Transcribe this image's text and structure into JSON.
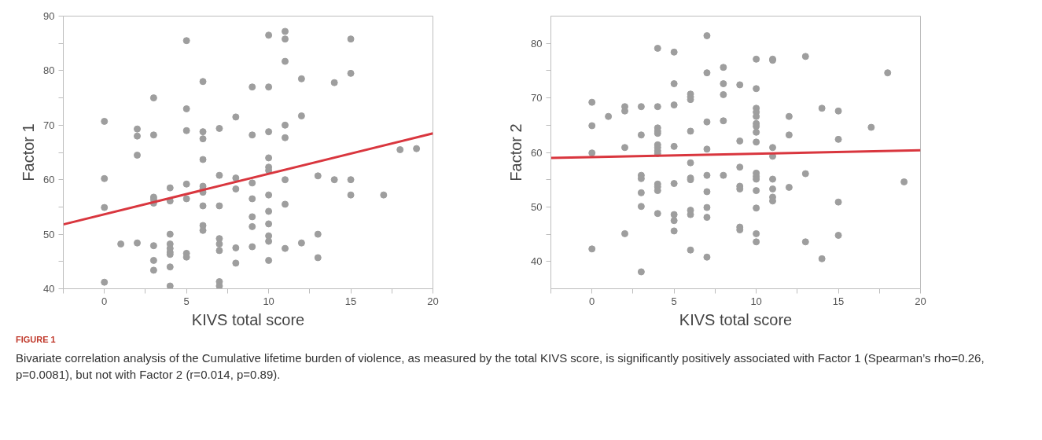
{
  "chart_data": [
    {
      "type": "scatter",
      "xlabel": "KIVS total score",
      "ylabel": "Factor 1",
      "xlim": [
        -2.5,
        20
      ],
      "ylim": [
        40,
        90
      ],
      "xticks": [
        {
          "value": -2.5,
          "label": null
        },
        0,
        {
          "value": 2.5,
          "label": null
        },
        5,
        {
          "value": 7.5,
          "label": null
        },
        10,
        {
          "value": 12.5,
          "label": null
        },
        15,
        {
          "value": 17.5,
          "label": null
        },
        20
      ],
      "yticks": [
        40,
        {
          "value": 45,
          "label": null
        },
        50,
        {
          "value": 55,
          "label": null
        },
        60,
        {
          "value": 65,
          "label": null
        },
        70,
        {
          "value": 75,
          "label": null
        },
        80,
        {
          "value": 85,
          "label": null
        },
        90
      ],
      "grid": false,
      "marker": "circle",
      "series": [
        {
          "color": "#9e9e9e",
          "x": [
            0,
            0,
            0,
            0,
            1,
            2,
            2,
            2,
            2,
            3,
            3,
            3,
            3,
            3,
            3,
            3,
            3,
            4,
            4,
            4,
            4,
            4,
            4,
            4,
            4,
            4,
            5,
            5,
            5,
            5,
            5,
            5,
            5,
            6,
            6,
            6,
            6,
            6,
            6,
            6,
            6,
            6,
            6,
            7,
            7,
            7,
            7,
            7,
            7,
            7,
            7,
            8,
            8,
            8,
            8,
            8,
            9,
            9,
            9,
            9,
            9,
            9,
            9,
            10,
            10,
            10,
            10,
            10,
            10,
            10,
            10,
            10,
            10,
            10,
            10,
            11,
            11,
            11,
            11,
            11,
            11,
            11,
            11,
            12,
            12,
            12,
            13,
            13,
            13,
            14,
            14,
            15,
            15,
            15,
            15,
            17,
            18,
            19
          ],
          "values": [
            70.7,
            60.2,
            54.9,
            41.2,
            48.2,
            69.3,
            68.0,
            64.5,
            48.4,
            75.0,
            68.2,
            56.8,
            56.4,
            55.7,
            47.9,
            45.2,
            43.4,
            58.5,
            56.1,
            50.0,
            48.2,
            47.4,
            46.7,
            46.3,
            44.0,
            40.5,
            85.5,
            73.0,
            69.0,
            59.2,
            56.5,
            46.5,
            45.8,
            78.0,
            68.8,
            67.5,
            63.7,
            58.8,
            58.3,
            57.7,
            55.2,
            51.6,
            50.7,
            69.4,
            60.8,
            55.2,
            49.2,
            48.2,
            47.0,
            41.3,
            40.5,
            71.5,
            60.3,
            58.3,
            47.5,
            44.7,
            77.0,
            68.2,
            59.4,
            56.5,
            53.2,
            51.4,
            47.7,
            86.5,
            77.0,
            68.8,
            64.0,
            62.3,
            61.7,
            57.2,
            54.2,
            51.9,
            49.7,
            48.7,
            45.2,
            87.2,
            85.8,
            81.7,
            70.0,
            67.7,
            60.0,
            55.5,
            47.4,
            78.5,
            71.7,
            48.4,
            60.7,
            50.0,
            45.7,
            77.8,
            60.0,
            85.8,
            79.5,
            60.0,
            57.2,
            57.2,
            65.5,
            65.7
          ]
        },
        {
          "type": "line",
          "color": "#d9363e",
          "x": [
            -2.5,
            20
          ],
          "values": [
            51.8,
            68.5
          ],
          "line_style": "solid",
          "marker": "none"
        }
      ]
    },
    {
      "type": "scatter",
      "xlabel": "KIVS total score",
      "ylabel": "Factor 2",
      "xlim": [
        -2.5,
        20
      ],
      "ylim": [
        35,
        85
      ],
      "xticks": [
        {
          "value": -2.5,
          "label": null
        },
        0,
        {
          "value": 2.5,
          "label": null
        },
        5,
        {
          "value": 7.5,
          "label": null
        },
        10,
        {
          "value": 12.5,
          "label": null
        },
        15,
        {
          "value": 17.5,
          "label": null
        },
        20
      ],
      "yticks": [
        40,
        {
          "value": 45,
          "label": null
        },
        50,
        {
          "value": 55,
          "label": null
        },
        60,
        {
          "value": 65,
          "label": null
        },
        70,
        {
          "value": 75,
          "label": null
        },
        80
      ],
      "grid": false,
      "marker": "circle",
      "series": [
        {
          "color": "#9e9e9e",
          "x": [
            0,
            0,
            0,
            0,
            1,
            2,
            2,
            2,
            2,
            3,
            3,
            3,
            3,
            3,
            3,
            3,
            4,
            4,
            4,
            4,
            4,
            4,
            4,
            4,
            4,
            4,
            4,
            4,
            4,
            5,
            5,
            5,
            5,
            5,
            5,
            5,
            5,
            6,
            6,
            6,
            6,
            6,
            6,
            6,
            6,
            6,
            6,
            7,
            7,
            7,
            7,
            7,
            7,
            7,
            7,
            7,
            8,
            8,
            8,
            8,
            8,
            9,
            9,
            9,
            9,
            9,
            9,
            9,
            10,
            10,
            10,
            10,
            10,
            10,
            10,
            10,
            10,
            10,
            10,
            10,
            10,
            10,
            10,
            10,
            11,
            11,
            11,
            11,
            11,
            11,
            11,
            11,
            12,
            12,
            12,
            13,
            13,
            13,
            14,
            14,
            15,
            15,
            15,
            15,
            17,
            18,
            19
          ],
          "values": [
            69.2,
            64.9,
            59.9,
            42.3,
            66.6,
            68.4,
            67.6,
            60.9,
            45.1,
            68.4,
            63.2,
            55.8,
            55.2,
            52.6,
            50.1,
            38.1,
            79.1,
            68.4,
            64.5,
            63.9,
            63.5,
            61.4,
            60.9,
            60.3,
            59.8,
            54.2,
            53.7,
            53.0,
            48.8,
            78.4,
            72.6,
            68.7,
            61.1,
            54.3,
            48.6,
            47.5,
            45.6,
            70.7,
            70.2,
            69.7,
            63.9,
            58.1,
            55.3,
            55.0,
            49.4,
            48.6,
            42.1,
            81.4,
            74.6,
            65.6,
            60.6,
            55.8,
            52.8,
            49.9,
            48.1,
            40.8,
            75.6,
            72.6,
            70.6,
            65.8,
            55.8,
            72.4,
            62.1,
            57.3,
            53.8,
            53.3,
            46.3,
            45.8,
            77.1,
            71.7,
            68.1,
            67.4,
            66.6,
            65.3,
            64.8,
            63.7,
            61.9,
            56.2,
            55.6,
            55.1,
            53.0,
            49.8,
            45.1,
            43.6,
            77.1,
            76.9,
            60.9,
            59.3,
            55.1,
            53.3,
            51.8,
            51.1,
            66.6,
            63.2,
            53.6,
            77.6,
            56.1,
            43.6,
            68.1,
            40.5,
            67.6,
            62.4,
            50.9,
            44.8,
            64.6,
            74.6,
            54.6
          ]
        },
        {
          "type": "line",
          "color": "#d9363e",
          "x": [
            -2.5,
            20
          ],
          "values": [
            59.0,
            60.4
          ],
          "line_style": "solid",
          "marker": "none"
        }
      ],
      "annotations": [
        "FIGURE 1",
        "Bivariate correlation analysis of the Cumulative lifetime burden of violence, as measured by the total KIVS score, is significantly positively associated with Factor 1 (Spearman’s rho=0.26, p=0.0081), but not with Factor 2 (r=0.014, p=0.89)."
      ]
    }
  ]
}
